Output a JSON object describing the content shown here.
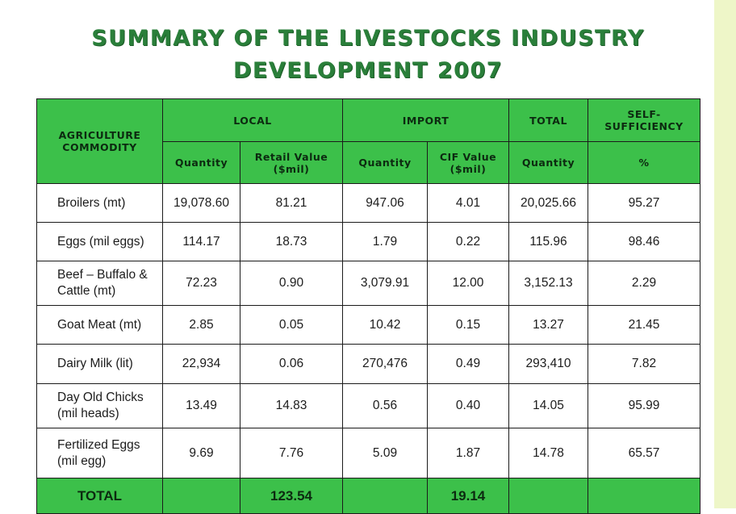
{
  "title": {
    "line1": "SUMMARY OF THE LIVESTOCKS INDUSTRY",
    "line2": "DEVELOPMENT 2007"
  },
  "table": {
    "headers": {
      "commodity": "AGRICULTURE COMMODITY",
      "local": "LOCAL",
      "import": "IMPORT",
      "total": "TOTAL",
      "self_sufficiency": "SELF-SUFFICIENCY",
      "local_quantity": "Quantity",
      "local_retail_value": "Retail Value ($mil)",
      "import_quantity": "Quantity",
      "import_cif_value": "CIF Value ($mil)",
      "total_quantity": "Quantity",
      "percent": "%"
    },
    "rows": [
      {
        "commodity": "Broilers (mt)",
        "local_qty": "19,078.60",
        "retail_value": "81.21",
        "import_qty": "947.06",
        "cif_value": "4.01",
        "total_qty": "20,025.66",
        "self_sufficiency": "95.27"
      },
      {
        "commodity": "Eggs (mil eggs)",
        "local_qty": "114.17",
        "retail_value": "18.73",
        "import_qty": "1.79",
        "cif_value": "0.22",
        "total_qty": "115.96",
        "self_sufficiency": "98.46"
      },
      {
        "commodity": "Beef – Buffalo & Cattle (mt)",
        "local_qty": "72.23",
        "retail_value": "0.90",
        "import_qty": "3,079.91",
        "cif_value": "12.00",
        "total_qty": "3,152.13",
        "self_sufficiency": "2.29"
      },
      {
        "commodity": "Goat Meat (mt)",
        "local_qty": "2.85",
        "retail_value": "0.05",
        "import_qty": "10.42",
        "cif_value": "0.15",
        "total_qty": "13.27",
        "self_sufficiency": "21.45"
      },
      {
        "commodity": "Dairy Milk (lit)",
        "local_qty": "22,934",
        "retail_value": "0.06",
        "import_qty": "270,476",
        "cif_value": "0.49",
        "total_qty": "293,410",
        "self_sufficiency": "7.82"
      },
      {
        "commodity": "Day Old Chicks (mil heads)",
        "local_qty": "13.49",
        "retail_value": "14.83",
        "import_qty": "0.56",
        "cif_value": "0.40",
        "total_qty": "14.05",
        "self_sufficiency": "95.99"
      },
      {
        "commodity": "Fertilized Eggs (mil egg)",
        "local_qty": "9.69",
        "retail_value": "7.76",
        "import_qty": "5.09",
        "cif_value": "1.87",
        "total_qty": "14.78",
        "self_sufficiency": "65.57"
      }
    ],
    "total_row": {
      "label": "TOTAL",
      "local_qty": "",
      "retail_value": "123.54",
      "import_qty": "",
      "cif_value": "19.14",
      "total_qty": "",
      "self_sufficiency": ""
    }
  },
  "colors": {
    "title_green": "#2a7f3a",
    "header_green": "#3cc04a",
    "border": "#1b1b1b"
  }
}
